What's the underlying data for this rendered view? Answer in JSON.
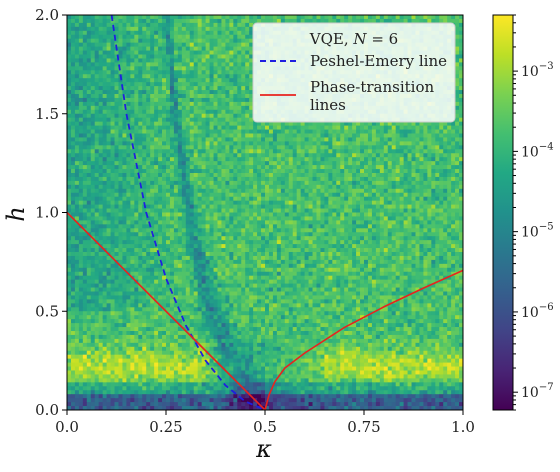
{
  "chart_data": {
    "type": "heatmap",
    "title": "",
    "xlabel": "κ",
    "ylabel": "h",
    "xlim": [
      0.0,
      1.0
    ],
    "ylim": [
      0.0,
      2.0
    ],
    "x_ticks": [
      "0.0",
      "0.25",
      "0.5",
      "0.75",
      "1.0"
    ],
    "y_ticks": [
      "0.0",
      "0.5",
      "1.0",
      "1.5",
      "2.0"
    ],
    "colormap": "viridis",
    "colorscale": "log",
    "color_range": [
      6e-08,
      0.005
    ],
    "colorbar_ticks": [
      {
        "value": 1e-07,
        "base": "10",
        "exp": "−7"
      },
      {
        "value": 1e-06,
        "base": "10",
        "exp": "−6"
      },
      {
        "value": 1e-05,
        "base": "10",
        "exp": "−5"
      },
      {
        "value": 0.0001,
        "base": "10",
        "exp": "−4"
      },
      {
        "value": 0.001,
        "base": "10",
        "exp": "−3"
      }
    ],
    "legend": {
      "placement": "top-right",
      "title_text": "VQE, ",
      "title_var": "N",
      "title_rest": " = 6",
      "entries": [
        {
          "label_lines": [
            "Peshel-Emery line"
          ],
          "color": "#1f1fe0",
          "style": "dashed"
        },
        {
          "label_lines": [
            "Phase-transition",
            "lines"
          ],
          "color": "#e8231e",
          "style": "solid"
        }
      ]
    },
    "series": [
      {
        "name": "Peshel-Emery line",
        "color": "#1f1fe0",
        "style": "dashed",
        "points": [
          [
            0.1125,
            2.0
          ],
          [
            0.15,
            1.5
          ],
          [
            0.2,
            1.0
          ],
          [
            0.25,
            0.667
          ],
          [
            0.3,
            0.429
          ],
          [
            0.35,
            0.25
          ],
          [
            0.4,
            0.125
          ],
          [
            0.45,
            0.0435
          ],
          [
            0.5,
            0.0
          ]
        ]
      },
      {
        "name": "Phase-transition lines",
        "color": "#e8231e",
        "style": "solid",
        "points": [
          [
            0.0,
            1.0
          ],
          [
            0.1,
            0.8
          ],
          [
            0.2,
            0.6
          ],
          [
            0.3,
            0.4
          ],
          [
            0.4,
            0.2
          ],
          [
            0.5,
            0.0
          ]
        ]
      },
      {
        "name": "Phase-transition lines",
        "color": "#e8231e",
        "style": "solid",
        "points": [
          [
            0.5,
            0.0
          ],
          [
            0.51,
            0.076
          ],
          [
            0.525,
            0.144
          ],
          [
            0.55,
            0.212
          ],
          [
            0.6,
            0.288
          ],
          [
            0.7,
            0.417
          ],
          [
            0.8,
            0.522
          ],
          [
            0.9,
            0.617
          ],
          [
            1.0,
            0.707
          ]
        ]
      }
    ],
    "colors": {
      "viridis_stops": [
        "#440154",
        "#482475",
        "#414487",
        "#355f8d",
        "#2a788e",
        "#21918c",
        "#22a884",
        "#44bf70",
        "#7ad151",
        "#bddf26",
        "#fde725"
      ]
    }
  }
}
